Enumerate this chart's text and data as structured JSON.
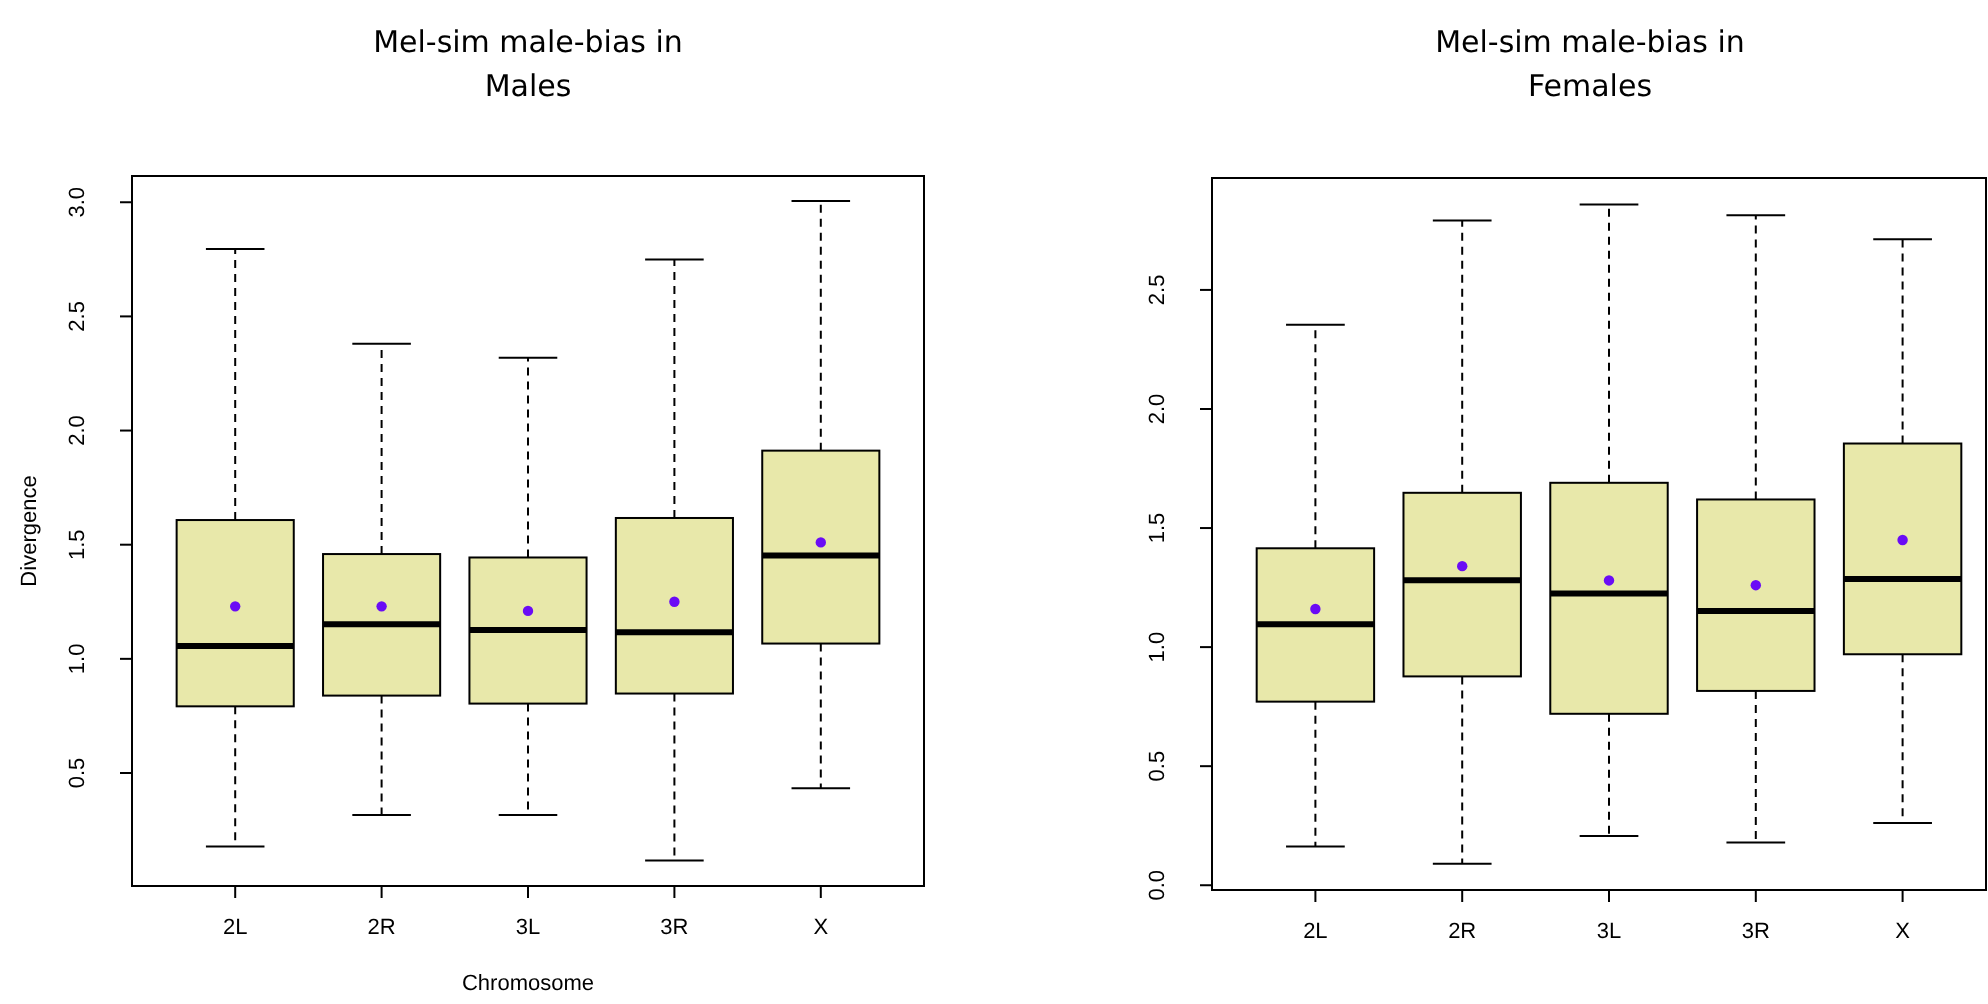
{
  "chart_data": [
    {
      "type": "box",
      "title": "Mel-sim male-bias in\nMales",
      "xlabel": "Chromosome",
      "ylabel": "Divergence",
      "categories": [
        "2L",
        "2R",
        "3L",
        "3R",
        "X"
      ],
      "color": "#e8e8aa",
      "ylim": [
        0.005,
        3.115
      ],
      "yticks": [
        {
          "value": 0.5,
          "label": "0.5"
        },
        {
          "value": 1,
          "label": "1.0"
        },
        {
          "value": 1.5,
          "label": "1.5"
        },
        {
          "value": 2,
          "label": "2.0"
        },
        {
          "value": 2.5,
          "label": "2.5"
        },
        {
          "value": 3,
          "label": "3.0"
        }
      ],
      "grid": false,
      "boxes": [
        {
          "low": 0.178,
          "q1": 0.792,
          "median": 1.056,
          "q3": 1.608,
          "high": 2.795
        },
        {
          "low": 0.316,
          "q1": 0.839,
          "median": 1.152,
          "q3": 1.459,
          "high": 2.38
        },
        {
          "low": 0.316,
          "q1": 0.804,
          "median": 1.126,
          "q3": 1.444,
          "high": 2.319
        },
        {
          "low": 0.117,
          "q1": 0.848,
          "median": 1.117,
          "q3": 1.617,
          "high": 2.749
        },
        {
          "low": 0.433,
          "q1": 1.067,
          "median": 1.453,
          "q3": 1.912,
          "high": 3.006
        }
      ],
      "series": [
        {
          "type": "scatter",
          "marker": "circle",
          "color": "#6a0cf5",
          "x": [
            "2L",
            "2R",
            "3L",
            "3R",
            "X"
          ],
          "values": [
            1.23,
            1.23,
            1.21,
            1.25,
            1.51
          ]
        }
      ]
    },
    {
      "type": "box",
      "title": "Mel-sim male-bias in\nFemales",
      "categories": [
        "2L",
        "2R",
        "3L",
        "3R",
        "X"
      ],
      "color": "#e8e8aa",
      "ylim": [
        -0.02,
        2.97
      ],
      "yticks": [
        {
          "value": 0,
          "label": "0.0"
        },
        {
          "value": 0.5,
          "label": "0.5"
        },
        {
          "value": 1,
          "label": "1.0"
        },
        {
          "value": 1.5,
          "label": "1.5"
        },
        {
          "value": 2,
          "label": "2.0"
        },
        {
          "value": 2.5,
          "label": "2.5"
        }
      ],
      "grid": false,
      "boxes": [
        {
          "low": 0.163,
          "q1": 0.771,
          "median": 1.096,
          "q3": 1.415,
          "high": 2.354
        },
        {
          "low": 0.09,
          "q1": 0.877,
          "median": 1.281,
          "q3": 1.648,
          "high": 2.791
        },
        {
          "low": 0.207,
          "q1": 0.72,
          "median": 1.225,
          "q3": 1.69,
          "high": 2.859
        },
        {
          "low": 0.179,
          "q1": 0.816,
          "median": 1.152,
          "q3": 1.62,
          "high": 2.814
        },
        {
          "low": 0.261,
          "q1": 0.97,
          "median": 1.286,
          "q3": 1.855,
          "high": 2.713
        }
      ],
      "series": [
        {
          "type": "scatter",
          "marker": "circle",
          "color": "#6a0cf5",
          "x": [
            "2L",
            "2R",
            "3L",
            "3R",
            "X"
          ],
          "values": [
            1.16,
            1.34,
            1.28,
            1.26,
            1.45
          ]
        }
      ]
    }
  ]
}
